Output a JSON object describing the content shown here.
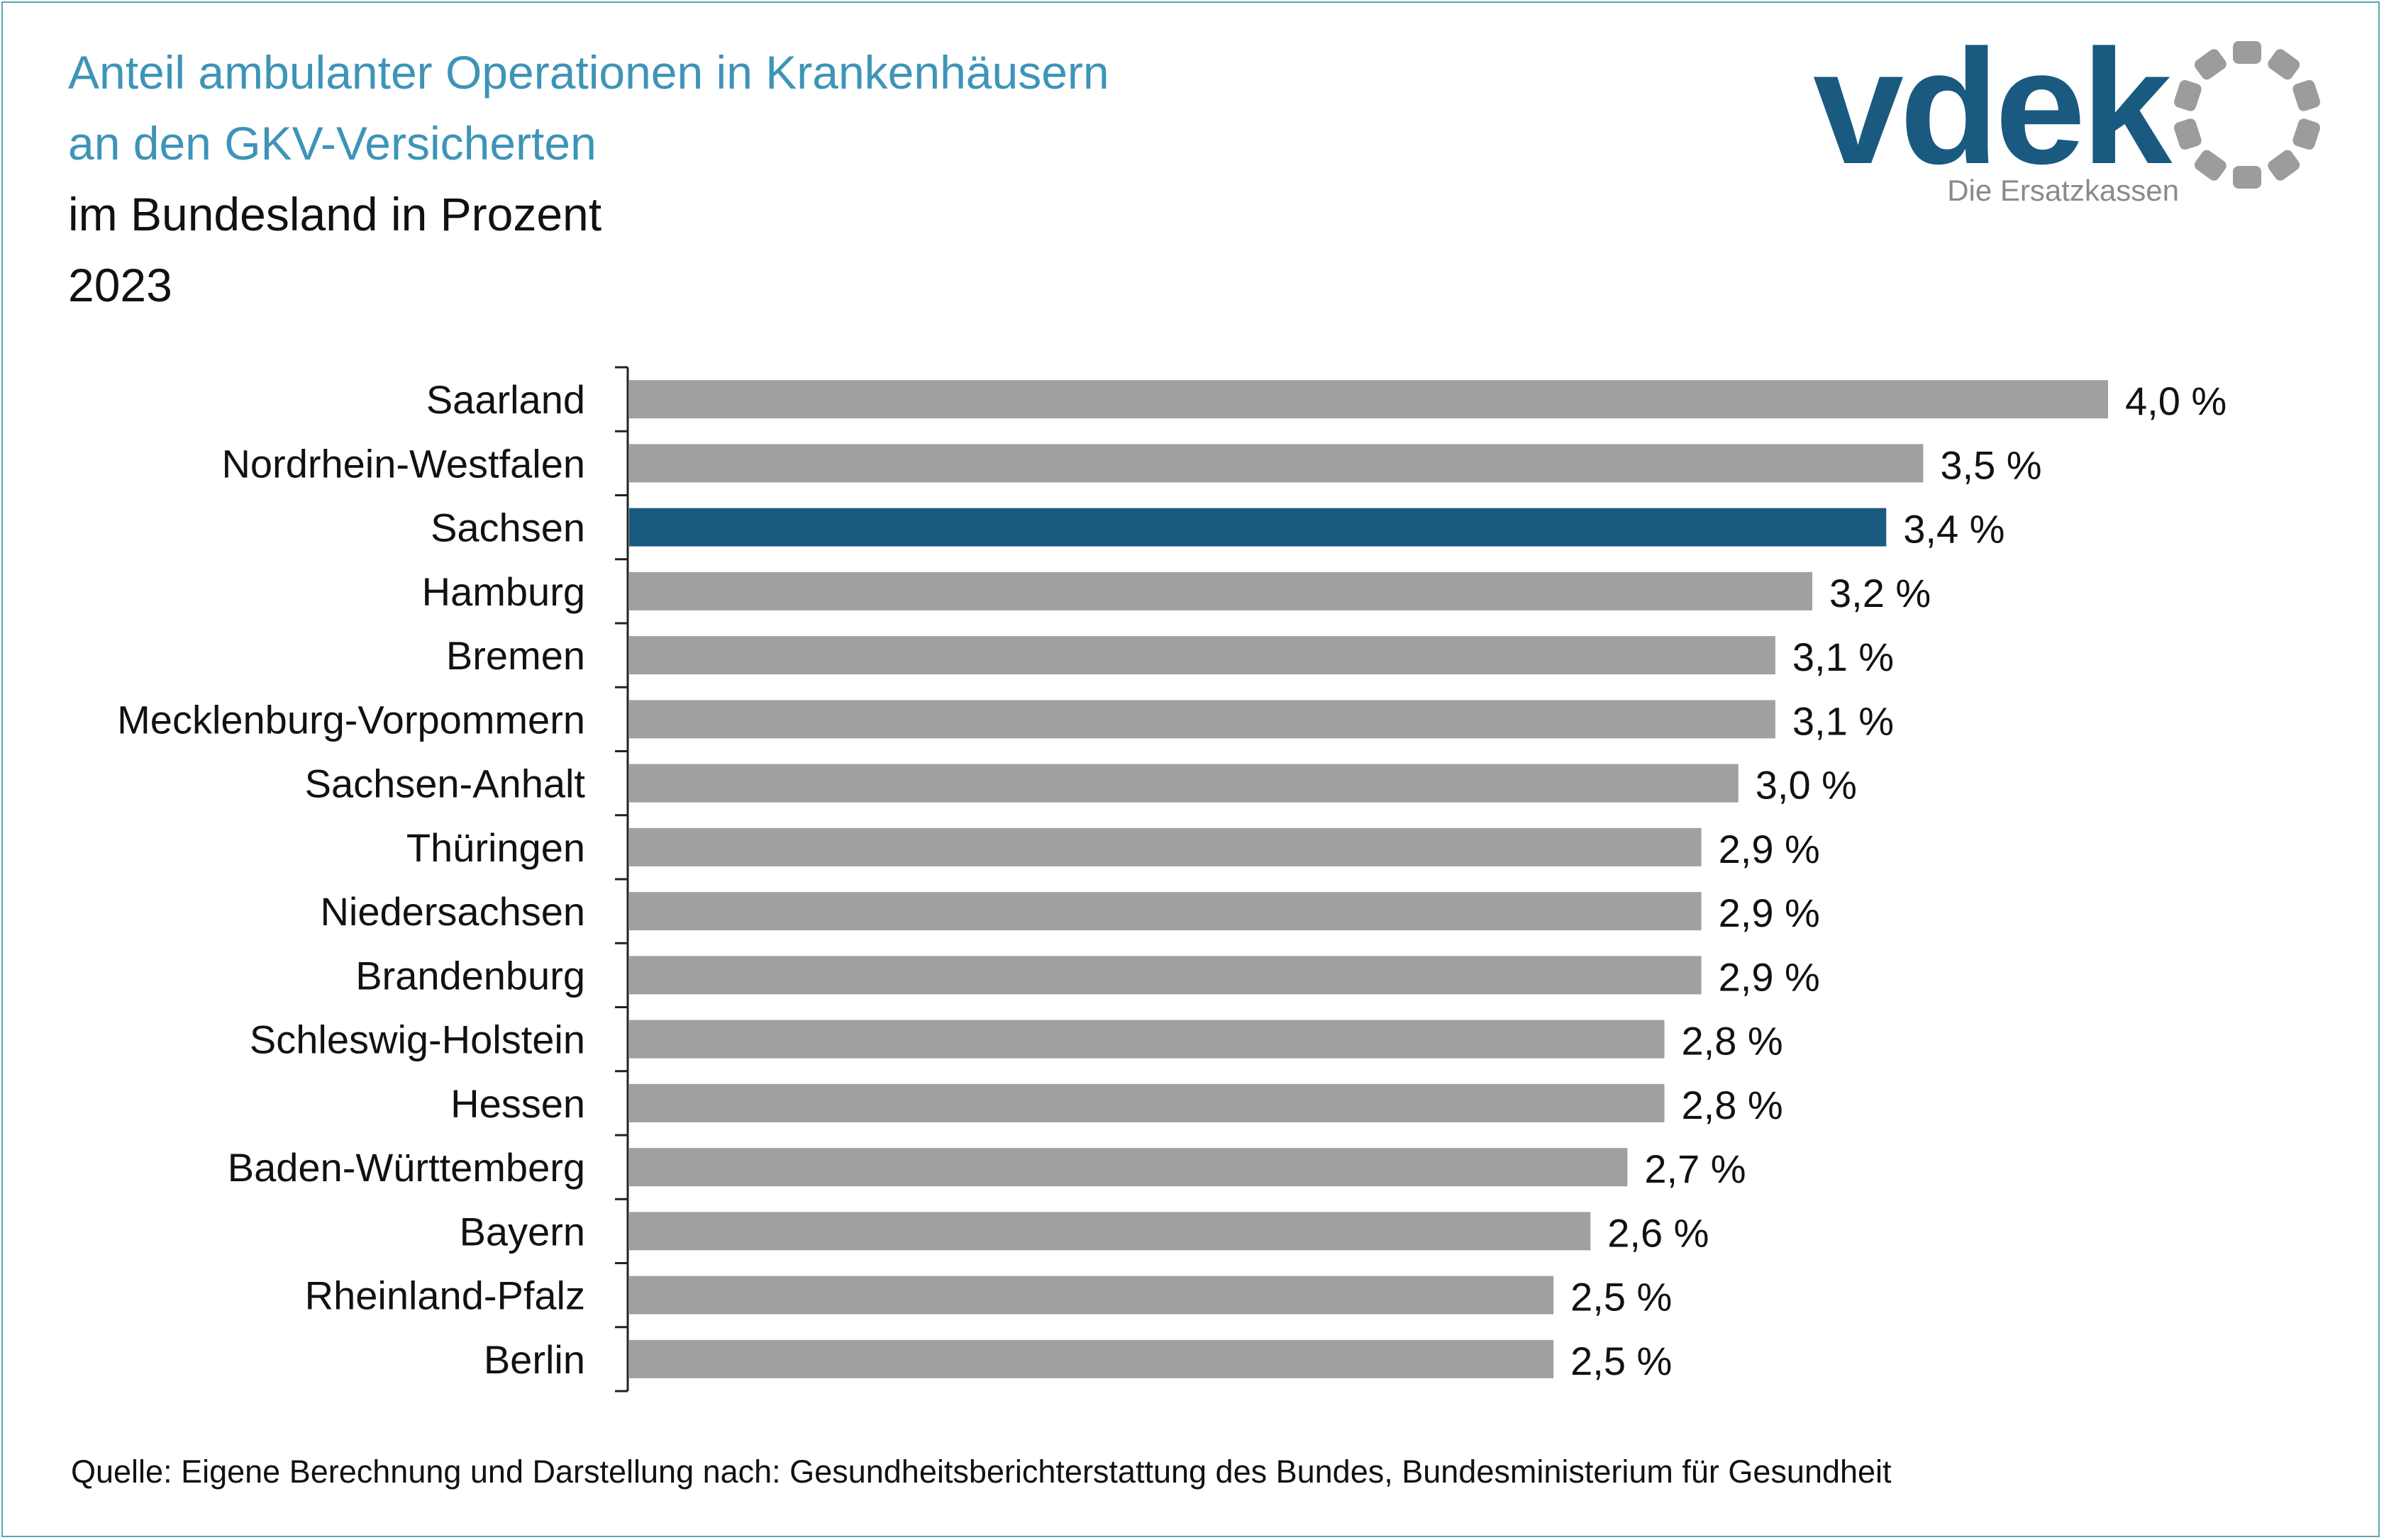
{
  "title": {
    "line1": "Anteil ambulanter Operationen in Krankenhäusern",
    "line2": "an den GKV-Versicherten",
    "line3": "im Bundesland in Prozent",
    "line4": "2023"
  },
  "logo": {
    "wordmark": "vdek",
    "tagline": "Die Ersatzkassen",
    "color": "#1a5a80",
    "tagline_color": "#8a8a8a",
    "ring_color": "#9c9c9c"
  },
  "source": "Quelle: Eigene Berechnung und Darstellung nach: Gesundheitsberichterstattung des Bundes, Bundesministerium für Gesundheit",
  "colors": {
    "bar_default": "#a0a0a0",
    "bar_highlight": "#1a5a80",
    "title_blue": "#3e94b8",
    "border": "#5aa7b4"
  },
  "chart_data": {
    "type": "bar",
    "orientation": "horizontal",
    "categories": [
      "Saarland",
      "Nordrhein-Westfalen",
      "Sachsen",
      "Hamburg",
      "Bremen",
      "Mecklenburg-Vorpommern",
      "Sachsen-Anhalt",
      "Thüringen",
      "Niedersachsen",
      "Brandenburg",
      "Schleswig-Holstein",
      "Hessen",
      "Baden-Württemberg",
      "Bayern",
      "Rheinland-Pfalz",
      "Berlin"
    ],
    "values": [
      4.0,
      3.5,
      3.4,
      3.2,
      3.1,
      3.1,
      3.0,
      2.9,
      2.9,
      2.9,
      2.8,
      2.8,
      2.7,
      2.6,
      2.5,
      2.5
    ],
    "value_labels": [
      "4,0 %",
      "3,5 %",
      "3,4 %",
      "3,2 %",
      "3,1 %",
      "3,1 %",
      "3,0 %",
      "2,9 %",
      "2,9 %",
      "2,9 %",
      "2,8 %",
      "2,8 %",
      "2,7 %",
      "2,6 %",
      "2,5 %",
      "2,5 %"
    ],
    "highlight": "Sachsen",
    "xlim": [
      0,
      4.0
    ],
    "grid": false,
    "legend": "none"
  }
}
